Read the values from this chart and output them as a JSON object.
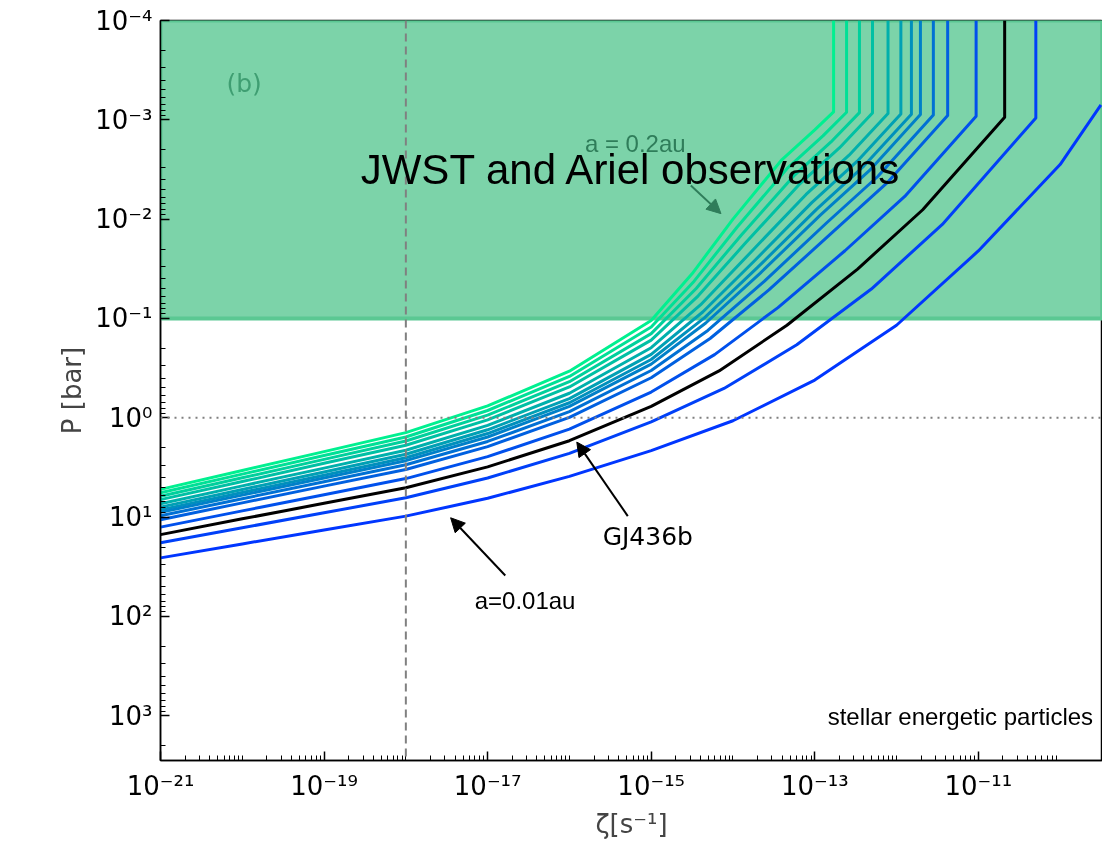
{
  "chart_data": {
    "type": "line",
    "xlabel": "ζ[s⁻¹]",
    "ylabel": "P [bar]",
    "log": "xy",
    "marker": "none",
    "line_style": "solid",
    "xlim": [
      1e-21,
      3.3e-10
    ],
    "ylim": [
      2818,
      0.0001
    ],
    "xticks": [
      {
        "value": 1e-21,
        "label": "10⁻²¹"
      },
      {
        "value": 1e-19,
        "label": "10⁻¹⁹"
      },
      {
        "value": 1e-17,
        "label": "10⁻¹⁷"
      },
      {
        "value": 1e-15,
        "label": "10⁻¹⁵"
      },
      {
        "value": 1e-13,
        "label": "10⁻¹³"
      },
      {
        "value": 1e-11,
        "label": "10⁻¹¹"
      }
    ],
    "yticks": [
      {
        "value": 0.0001,
        "label": "10⁻⁴"
      },
      {
        "value": 0.001,
        "label": "10⁻³"
      },
      {
        "value": 0.01,
        "label": "10⁻²"
      },
      {
        "value": 0.1,
        "label": "10⁻¹"
      },
      {
        "value": 1,
        "label": "10⁰"
      },
      {
        "value": 10,
        "label": "10¹"
      },
      {
        "value": 100,
        "label": "10²"
      },
      {
        "value": 1000,
        "label": "10³"
      }
    ],
    "series": [
      {
        "color": "#00f090",
        "x": [
          1e-21,
          1e-20,
          1e-19,
          1e-18,
          1e-17,
          1e-16,
          1e-15,
          3.16e-15,
          1e-14,
          3.98e-14,
          1e-13,
          1.7e-13,
          1.7e-13
        ],
        "values": [
          5.25,
          3.39,
          2.19,
          1.41,
          0.759,
          0.339,
          0.105,
          0.0355,
          0.01,
          0.00251,
          0.00126,
          0.000832,
          0.0001
        ]
      },
      {
        "color": "#00e096",
        "x": [
          1e-21,
          1e-20,
          1e-19,
          1e-18,
          1e-17,
          1e-16,
          1e-15,
          3.35e-15,
          1.12e-14,
          4.68e-14,
          1.26e-13,
          2.45e-13,
          2.45e-13
        ],
        "values": [
          5.68,
          3.69,
          2.4,
          1.56,
          0.844,
          0.383,
          0.122,
          0.0421,
          0.01205,
          0.00304,
          0.00145,
          0.000839,
          0.0001
        ]
      },
      {
        "color": "#00d09c",
        "x": [
          1e-21,
          1e-20,
          1e-19,
          1e-18,
          1e-17,
          1e-16,
          1e-15,
          3.55e-15,
          1.26e-14,
          5.5e-14,
          1.58e-13,
          3.52e-13,
          3.52e-13
        ],
        "values": [
          6.15,
          4.02,
          2.62,
          1.71,
          0.94,
          0.433,
          0.142,
          0.0499,
          0.0145,
          0.00369,
          0.00167,
          0.000847,
          0.0001
        ]
      },
      {
        "color": "#00c0a4",
        "x": [
          1e-21,
          1e-20,
          1e-19,
          1e-18,
          1e-17,
          1e-16,
          1e-15,
          3.76e-15,
          1.41e-14,
          6.46e-14,
          2e-13,
          5.08e-13,
          5.08e-13
        ],
        "values": [
          6.66,
          4.38,
          2.87,
          1.89,
          1.05,
          0.489,
          0.165,
          0.0592,
          0.0175,
          0.00447,
          0.00192,
          0.000855,
          0.0001
        ]
      },
      {
        "color": "#00b0ac",
        "x": [
          1e-21,
          1e-20,
          1e-19,
          1e-18,
          1e-17,
          1e-16,
          1e-15,
          4.03e-15,
          1.62e-14,
          7.83e-14,
          2.63e-13,
          7.87e-13,
          7.87e-13
        ],
        "values": [
          7.33,
          4.84,
          3.21,
          2.12,
          1.19,
          0.566,
          0.197,
          0.0726,
          0.0219,
          0.00564,
          0.00227,
          0.000865,
          0.0001
        ]
      },
      {
        "color": "#00a0b4",
        "x": [
          1e-21,
          1e-20,
          1e-19,
          1e-18,
          1e-17,
          1e-16,
          1e-15,
          4.27e-15,
          1.82e-14,
          9.2e-14,
          3.31e-13,
          1.13e-12,
          1.13e-12
        ],
        "values": [
          7.93,
          5.27,
          3.51,
          2.33,
          1.32,
          0.64,
          0.23,
          0.0861,
          0.0264,
          0.00682,
          0.00261,
          0.000873,
          0.0001
        ]
      },
      {
        "color": "#0090bc",
        "x": [
          1e-21,
          1e-20,
          1e-19,
          1e-18,
          1e-17,
          1e-16,
          1e-15,
          4.47e-15,
          2e-14,
          1.05e-13,
          3.98e-13,
          1.52e-12,
          1.52e-12
        ],
        "values": [
          8.45,
          5.65,
          3.78,
          2.52,
          1.44,
          0.705,
          0.259,
          0.0986,
          0.0306,
          0.00796,
          0.00292,
          0.000879,
          0.0001
        ]
      },
      {
        "color": "#0080c8",
        "x": [
          1e-21,
          1e-20,
          1e-19,
          1e-18,
          1e-17,
          1e-16,
          1e-15,
          4.65e-15,
          2.16e-14,
          1.17e-13,
          4.68e-13,
          1.96e-12,
          1.96e-12
        ],
        "values": [
          8.93,
          6.0,
          4.03,
          2.7,
          1.56,
          0.767,
          0.288,
          0.111,
          0.0349,
          0.0091,
          0.00323,
          0.000885,
          0.0001
        ]
      },
      {
        "color": "#0070d4",
        "x": [
          1e-21,
          1e-20,
          1e-19,
          1e-18,
          1e-17,
          1e-16,
          1e-15,
          4.93e-15,
          2.43e-14,
          1.38e-13,
          5.89e-13,
          2.82e-12,
          2.82e-12
        ],
        "values": [
          9.68,
          6.53,
          4.41,
          2.97,
          1.73,
          0.867,
          0.334,
          0.132,
          0.0421,
          0.011,
          0.00372,
          0.000893,
          0.0001
        ]
      },
      {
        "color": "#0060e0",
        "x": [
          1e-21,
          1e-20,
          1e-19,
          1e-18,
          1e-17,
          1e-16,
          1e-15,
          5.25e-15,
          2.75e-14,
          1.64e-13,
          7.59e-13,
          4.22e-12,
          4.22e-12
        ],
        "values": [
          10.6,
          7.18,
          4.87,
          3.31,
          1.95,
          0.991,
          0.395,
          0.159,
          0.0516,
          0.0136,
          0.00434,
          0.000902,
          0.0001
        ]
      },
      {
        "color": "#0050ec",
        "x": [
          1e-21,
          1e-20,
          1e-19,
          1e-18,
          1e-17,
          1e-16,
          1e-15,
          5.96e-15,
          3.55e-14,
          2.34e-13,
          1.26e-12,
          9.4e-12,
          9.4e-12
        ],
        "values": [
          12.6,
          8.65,
          5.96,
          4.09,
          2.46,
          1.3,
          0.55,
          0.231,
          0.0778,
          0.0208,
          0.0059,
          0.00092,
          0.0001
        ]
      },
      {
        "color": "#000000",
        "x": [
          1e-21,
          1e-20,
          1e-19,
          1e-18,
          1e-17,
          1e-16,
          1e-15,
          6.76e-15,
          4.57e-14,
          3.34e-13,
          2.09e-12,
          2.1e-11,
          2.1e-11
        ],
        "values": [
          15.0,
          10.4,
          7.26,
          5.06,
          3.12,
          1.7,
          0.767,
          0.337,
          0.117,
          0.0318,
          0.00804,
          0.00094,
          0.0001
        ]
      },
      {
        "color": "#0040f8",
        "x": [
          1e-21,
          1e-20,
          1e-19,
          1e-18,
          1e-17,
          1e-16,
          1e-15,
          7.76e-15,
          6.03e-14,
          4.92e-13,
          3.63e-12,
          5.05e-11,
          5.05e-11
        ],
        "values": [
          18.1,
          12.8,
          9.04,
          6.38,
          4.03,
          2.28,
          1.1,
          0.506,
          0.184,
          0.0505,
          0.0113,
          0.000959,
          0.0001
        ]
      },
      {
        "color": "#0036ff",
        "x": [
          1e-21,
          1e-20,
          1e-19,
          1e-18,
          1e-17,
          1e-16,
          1e-15,
          1e-14,
          1e-13,
          1e-12,
          1e-11,
          1e-10,
          3.16e-10
        ],
        "values": [
          25.7,
          18.6,
          13.5,
          9.77,
          6.46,
          3.89,
          2.14,
          1.07,
          0.417,
          0.117,
          0.0209,
          0.00282,
          0.000708
        ]
      }
    ],
    "ref_lines": [
      {
        "axis": "x",
        "value": 1e-18,
        "color": "#808080",
        "line_style": "dashed"
      },
      {
        "axis": "y",
        "value": 1,
        "color": "#808080",
        "line_style": "dotted"
      }
    ],
    "bands": [
      {
        "axis": "y",
        "from": 0.0001,
        "to": 0.1,
        "label": "JWST and Ariel observations",
        "color": "#5bc893"
      }
    ],
    "annotations": [
      "(b)",
      "a = 0.2au",
      {
        "text": "GJ436b",
        "x": 1.1e-16,
        "y": 1.6
      },
      "a=0.01au",
      "stellar energetic particles"
    ]
  }
}
